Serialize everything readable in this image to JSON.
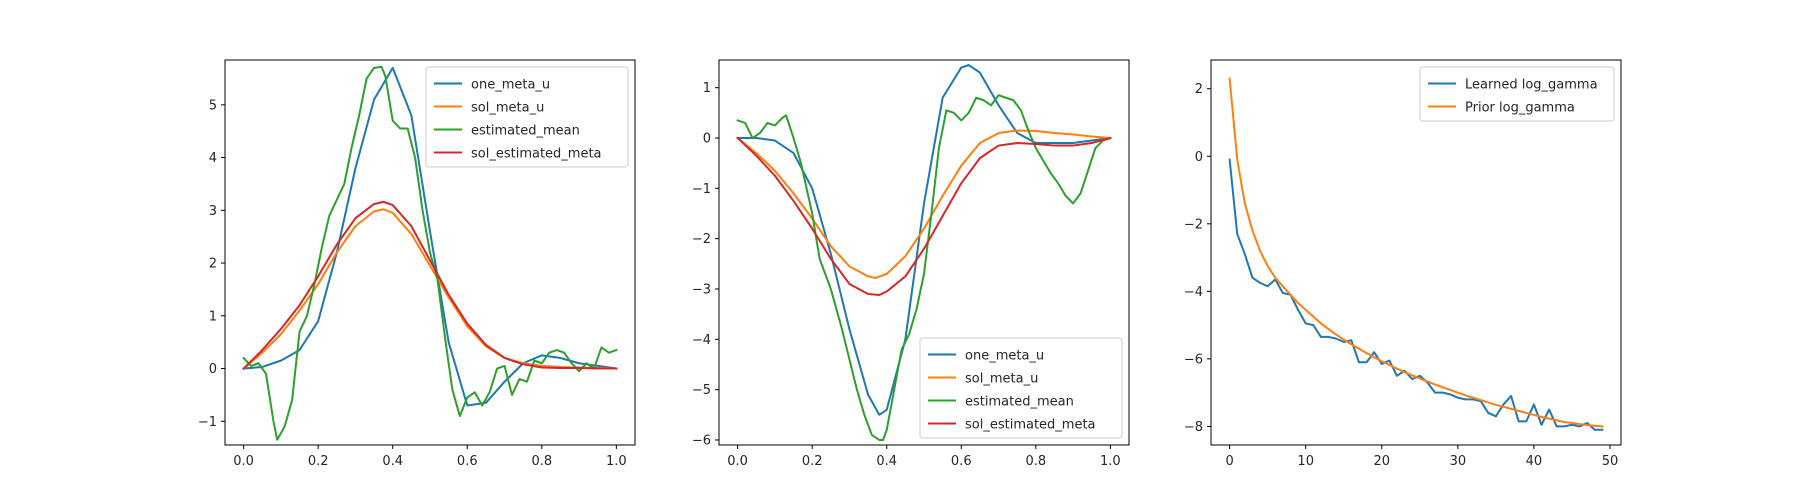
{
  "chart_data": [
    {
      "type": "line",
      "title": "",
      "xlabel": "",
      "ylabel": "",
      "xlim": [
        -0.05,
        1.05
      ],
      "ylim": [
        -1.45,
        5.85
      ],
      "xticks": [
        0.0,
        0.2,
        0.4,
        0.6,
        0.8,
        1.0
      ],
      "xtick_labels": [
        "0.0",
        "0.2",
        "0.4",
        "0.6",
        "0.8",
        "1.0"
      ],
      "yticks": [
        -1,
        0,
        1,
        2,
        3,
        4,
        5
      ],
      "ytick_labels": [
        "−1",
        "0",
        "1",
        "2",
        "3",
        "4",
        "5"
      ],
      "legend": "top-right",
      "grid": false,
      "series": [
        {
          "name": "one_meta_u",
          "color": "#1f77b4",
          "x": [
            0.0,
            0.05,
            0.1,
            0.15,
            0.2,
            0.25,
            0.3,
            0.35,
            0.4,
            0.45,
            0.5,
            0.55,
            0.6,
            0.65,
            0.7,
            0.75,
            0.8,
            0.85,
            0.9,
            0.95,
            1.0
          ],
          "y": [
            0.0,
            0.03,
            0.15,
            0.35,
            0.9,
            2.2,
            3.8,
            5.1,
            5.7,
            4.8,
            2.6,
            0.5,
            -0.7,
            -0.65,
            -0.25,
            0.1,
            0.25,
            0.2,
            0.1,
            0.05,
            0.0
          ]
        },
        {
          "name": "sol_meta_u",
          "color": "#ff7f0e",
          "x": [
            0.0,
            0.05,
            0.1,
            0.15,
            0.2,
            0.25,
            0.3,
            0.35,
            0.375,
            0.4,
            0.45,
            0.5,
            0.55,
            0.6,
            0.65,
            0.7,
            0.75,
            0.8,
            0.85,
            0.9,
            0.95,
            1.0
          ],
          "y": [
            0.0,
            0.3,
            0.65,
            1.1,
            1.6,
            2.2,
            2.7,
            2.98,
            3.02,
            2.95,
            2.55,
            1.95,
            1.35,
            0.8,
            0.42,
            0.2,
            0.1,
            0.05,
            0.03,
            0.02,
            0.01,
            0.0
          ]
        },
        {
          "name": "estimated_mean",
          "color": "#2ca02c",
          "x": [
            0.0,
            0.02,
            0.04,
            0.06,
            0.08,
            0.09,
            0.11,
            0.13,
            0.15,
            0.17,
            0.19,
            0.21,
            0.23,
            0.25,
            0.27,
            0.29,
            0.31,
            0.33,
            0.35,
            0.37,
            0.38,
            0.4,
            0.42,
            0.44,
            0.46,
            0.48,
            0.5,
            0.52,
            0.54,
            0.56,
            0.58,
            0.6,
            0.62,
            0.64,
            0.66,
            0.68,
            0.7,
            0.72,
            0.74,
            0.76,
            0.78,
            0.8,
            0.82,
            0.84,
            0.86,
            0.88,
            0.9,
            0.92,
            0.94,
            0.96,
            0.98,
            1.0
          ],
          "y": [
            0.2,
            0.05,
            0.1,
            -0.1,
            -1.0,
            -1.35,
            -1.1,
            -0.6,
            0.7,
            1.0,
            1.6,
            2.3,
            2.9,
            3.2,
            3.5,
            4.2,
            4.8,
            5.5,
            5.7,
            5.72,
            5.55,
            4.7,
            4.55,
            4.55,
            4.0,
            3.0,
            2.2,
            1.7,
            0.6,
            -0.4,
            -0.9,
            -0.55,
            -0.45,
            -0.7,
            -0.45,
            0.0,
            0.05,
            -0.5,
            -0.2,
            -0.25,
            0.15,
            0.1,
            0.3,
            0.35,
            0.3,
            0.1,
            -0.05,
            0.1,
            0.0,
            0.4,
            0.3,
            0.35
          ]
        },
        {
          "name": "sol_estimated_meta",
          "color": "#d62728",
          "x": [
            0.0,
            0.05,
            0.1,
            0.15,
            0.2,
            0.25,
            0.3,
            0.35,
            0.375,
            0.4,
            0.45,
            0.5,
            0.55,
            0.6,
            0.65,
            0.7,
            0.75,
            0.8,
            0.85,
            0.9,
            0.95,
            1.0
          ],
          "y": [
            0.0,
            0.35,
            0.75,
            1.2,
            1.75,
            2.35,
            2.85,
            3.12,
            3.16,
            3.1,
            2.7,
            2.05,
            1.4,
            0.85,
            0.45,
            0.2,
            0.08,
            0.02,
            0.01,
            0.01,
            0.0,
            0.0
          ]
        }
      ]
    },
    {
      "type": "line",
      "title": "",
      "xlabel": "",
      "ylabel": "",
      "xlim": [
        -0.05,
        1.05
      ],
      "ylim": [
        -6.1,
        1.55
      ],
      "xticks": [
        0.0,
        0.2,
        0.4,
        0.6,
        0.8,
        1.0
      ],
      "xtick_labels": [
        "0.0",
        "0.2",
        "0.4",
        "0.6",
        "0.8",
        "1.0"
      ],
      "yticks": [
        -6,
        -5,
        -4,
        -3,
        -2,
        -1,
        0,
        1
      ],
      "ytick_labels": [
        "−6",
        "−5",
        "−4",
        "−3",
        "−2",
        "−1",
        "0",
        "1"
      ],
      "legend": "bottom-right",
      "grid": false,
      "series": [
        {
          "name": "one_meta_u",
          "color": "#1f77b4",
          "x": [
            0.0,
            0.05,
            0.1,
            0.15,
            0.2,
            0.25,
            0.3,
            0.35,
            0.38,
            0.4,
            0.45,
            0.5,
            0.55,
            0.6,
            0.62,
            0.65,
            0.7,
            0.75,
            0.8,
            0.85,
            0.9,
            0.95,
            1.0
          ],
          "y": [
            0.0,
            0.0,
            -0.05,
            -0.3,
            -1.0,
            -2.3,
            -3.8,
            -5.1,
            -5.5,
            -5.4,
            -4.0,
            -1.3,
            0.8,
            1.4,
            1.45,
            1.3,
            0.65,
            0.1,
            -0.1,
            -0.1,
            -0.1,
            -0.05,
            0.0
          ]
        },
        {
          "name": "sol_meta_u",
          "color": "#ff7f0e",
          "x": [
            0.0,
            0.05,
            0.1,
            0.15,
            0.2,
            0.25,
            0.3,
            0.35,
            0.37,
            0.4,
            0.45,
            0.5,
            0.55,
            0.6,
            0.65,
            0.7,
            0.75,
            0.8,
            0.85,
            0.9,
            0.95,
            1.0
          ],
          "y": [
            0.0,
            -0.3,
            -0.65,
            -1.1,
            -1.6,
            -2.15,
            -2.55,
            -2.75,
            -2.78,
            -2.7,
            -2.35,
            -1.8,
            -1.15,
            -0.55,
            -0.1,
            0.1,
            0.15,
            0.14,
            0.1,
            0.07,
            0.03,
            0.0
          ]
        },
        {
          "name": "estimated_mean",
          "color": "#2ca02c",
          "x": [
            0.0,
            0.02,
            0.04,
            0.06,
            0.08,
            0.1,
            0.12,
            0.13,
            0.15,
            0.17,
            0.2,
            0.22,
            0.25,
            0.28,
            0.3,
            0.32,
            0.34,
            0.36,
            0.38,
            0.39,
            0.4,
            0.42,
            0.44,
            0.46,
            0.48,
            0.5,
            0.52,
            0.54,
            0.56,
            0.58,
            0.6,
            0.62,
            0.64,
            0.66,
            0.68,
            0.7,
            0.72,
            0.74,
            0.76,
            0.78,
            0.8,
            0.82,
            0.84,
            0.86,
            0.88,
            0.9,
            0.92,
            0.94,
            0.96,
            0.98,
            1.0
          ],
          "y": [
            0.35,
            0.3,
            0.0,
            0.1,
            0.3,
            0.25,
            0.4,
            0.45,
            0.0,
            -0.5,
            -1.5,
            -2.4,
            -3.0,
            -3.8,
            -4.4,
            -5.0,
            -5.5,
            -5.9,
            -6.0,
            -6.0,
            -5.8,
            -5.0,
            -4.2,
            -3.9,
            -3.4,
            -2.7,
            -1.5,
            -0.2,
            0.55,
            0.5,
            0.35,
            0.5,
            0.8,
            0.75,
            0.65,
            0.85,
            0.8,
            0.75,
            0.55,
            0.15,
            -0.2,
            -0.45,
            -0.7,
            -0.9,
            -1.15,
            -1.3,
            -1.1,
            -0.65,
            -0.2,
            -0.05,
            0.0
          ]
        },
        {
          "name": "sol_estimated_meta",
          "color": "#d62728",
          "x": [
            0.0,
            0.05,
            0.1,
            0.15,
            0.2,
            0.25,
            0.3,
            0.35,
            0.38,
            0.4,
            0.45,
            0.5,
            0.55,
            0.6,
            0.65,
            0.7,
            0.75,
            0.8,
            0.85,
            0.9,
            0.95,
            1.0
          ],
          "y": [
            0.0,
            -0.35,
            -0.75,
            -1.25,
            -1.8,
            -2.4,
            -2.9,
            -3.1,
            -3.12,
            -3.05,
            -2.75,
            -2.2,
            -1.55,
            -0.9,
            -0.4,
            -0.15,
            -0.1,
            -0.12,
            -0.15,
            -0.15,
            -0.1,
            0.0
          ]
        }
      ]
    },
    {
      "type": "line",
      "title": "",
      "xlabel": "",
      "ylabel": "",
      "xlim": [
        -2.45,
        51.45
      ],
      "ylim": [
        -8.55,
        2.85
      ],
      "xticks": [
        0,
        10,
        20,
        30,
        40,
        50
      ],
      "xtick_labels": [
        "0",
        "10",
        "20",
        "30",
        "40",
        "50"
      ],
      "yticks": [
        -8,
        -6,
        -4,
        -2,
        0,
        2
      ],
      "ytick_labels": [
        "−8",
        "−6",
        "−4",
        "−2",
        "0",
        "2"
      ],
      "legend": "top-right",
      "grid": false,
      "series": [
        {
          "name": "Learned log_gamma",
          "color": "#1f77b4",
          "x": [
            0,
            1,
            2,
            3,
            4,
            5,
            6,
            7,
            8,
            9,
            10,
            11,
            12,
            13,
            14,
            15,
            16,
            17,
            18,
            19,
            20,
            21,
            22,
            23,
            24,
            25,
            26,
            27,
            28,
            29,
            30,
            31,
            32,
            33,
            34,
            35,
            36,
            37,
            38,
            39,
            40,
            41,
            42,
            43,
            44,
            45,
            46,
            47,
            48,
            49
          ],
          "y": [
            -0.1,
            -2.3,
            -2.9,
            -3.6,
            -3.75,
            -3.85,
            -3.65,
            -4.05,
            -4.1,
            -4.55,
            -4.95,
            -5.0,
            -5.35,
            -5.35,
            -5.4,
            -5.5,
            -5.45,
            -6.1,
            -6.1,
            -5.8,
            -6.15,
            -6.05,
            -6.5,
            -6.35,
            -6.6,
            -6.5,
            -6.7,
            -7.0,
            -7.0,
            -7.05,
            -7.15,
            -7.2,
            -7.2,
            -7.25,
            -7.6,
            -7.7,
            -7.35,
            -7.1,
            -7.85,
            -7.85,
            -7.35,
            -7.95,
            -7.5,
            -8.0,
            -8.0,
            -7.95,
            -8.0,
            -7.9,
            -8.1,
            -8.1
          ]
        },
        {
          "name": "Prior log_gamma",
          "color": "#ff7f0e",
          "x": [
            0,
            1,
            2,
            3,
            4,
            5,
            6,
            7,
            8,
            9,
            10,
            11,
            12,
            13,
            14,
            15,
            16,
            17,
            18,
            19,
            20,
            21,
            22,
            23,
            24,
            25,
            26,
            27,
            28,
            29,
            30,
            31,
            32,
            33,
            34,
            35,
            36,
            37,
            38,
            39,
            40,
            41,
            42,
            43,
            44,
            45,
            46,
            47,
            48,
            49
          ],
          "y": [
            2.3,
            -0.1,
            -1.4,
            -2.2,
            -2.8,
            -3.25,
            -3.6,
            -3.85,
            -4.1,
            -4.35,
            -4.55,
            -4.75,
            -4.95,
            -5.12,
            -5.28,
            -5.43,
            -5.57,
            -5.7,
            -5.83,
            -5.95,
            -6.07,
            -6.18,
            -6.29,
            -6.39,
            -6.49,
            -6.58,
            -6.67,
            -6.76,
            -6.84,
            -6.92,
            -7.0,
            -7.08,
            -7.15,
            -7.22,
            -7.29,
            -7.36,
            -7.42,
            -7.48,
            -7.54,
            -7.6,
            -7.66,
            -7.72,
            -7.77,
            -7.82,
            -7.87,
            -7.9,
            -7.93,
            -7.96,
            -7.98,
            -8.0
          ]
        }
      ]
    }
  ]
}
